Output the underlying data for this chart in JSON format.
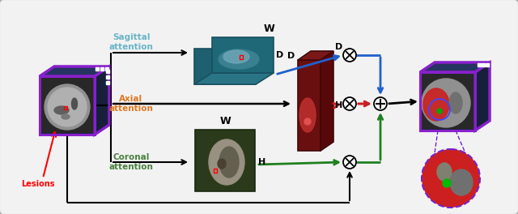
{
  "bg_color": "#eeeeee",
  "border_color": "#aaaaaa",
  "sagittal_color": "#6ab4c8",
  "axial_color": "#e07820",
  "coronal_color": "#4a8040",
  "cube_border_color": "#8820cc",
  "lesions_label": "Lesions",
  "arrow_blue": "#2060cc",
  "arrow_red": "#cc2020",
  "arrow_green": "#208020",
  "arrow_black": "#111111",
  "sagittal_text": "Sagittal\nattention",
  "axial_text": "Axial\nattention",
  "coronal_text": "Coronal\nattention"
}
